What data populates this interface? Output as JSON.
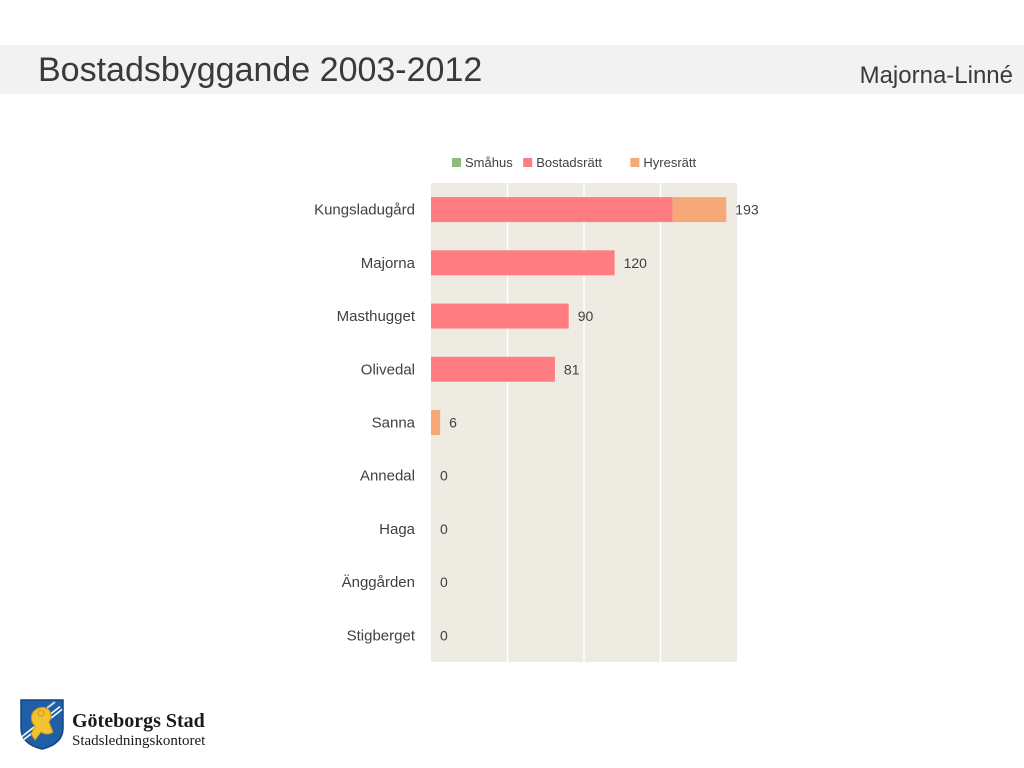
{
  "header": {
    "title": "Bostadsbyggande 2003-2012",
    "subtitle": "Majorna-Linné"
  },
  "chart_data": {
    "type": "bar",
    "orientation": "horizontal",
    "stacked": true,
    "categories": [
      "Kungsladugård",
      "Majorna",
      "Masthugget",
      "Olivedal",
      "Sanna",
      "Annedal",
      "Haga",
      "Änggården",
      "Stigberget"
    ],
    "series": [
      {
        "name": "Småhus",
        "color": "#8fbc7a",
        "values": [
          0,
          0,
          0,
          0,
          0,
          0,
          0,
          0,
          0
        ]
      },
      {
        "name": "Bostadsrätt",
        "color": "#ff7c80",
        "values": [
          158,
          120,
          90,
          81,
          0,
          0,
          0,
          0,
          0
        ]
      },
      {
        "name": "Hyresrätt",
        "color": "#f7a878",
        "values": [
          35,
          0,
          0,
          0,
          6,
          0,
          0,
          0,
          0
        ]
      }
    ],
    "totals": [
      "193",
      "120",
      "90",
      "81",
      "6",
      "0",
      "0",
      "0",
      "0"
    ],
    "xlim": [
      0,
      200
    ],
    "grid": true,
    "legend_position": "top",
    "plot_background": "#eeebe3"
  },
  "footer": {
    "org_name": "Göteborgs Stad",
    "department": "Stadsledningskontoret",
    "logo_icon": "gothenburg-lion-shield"
  }
}
